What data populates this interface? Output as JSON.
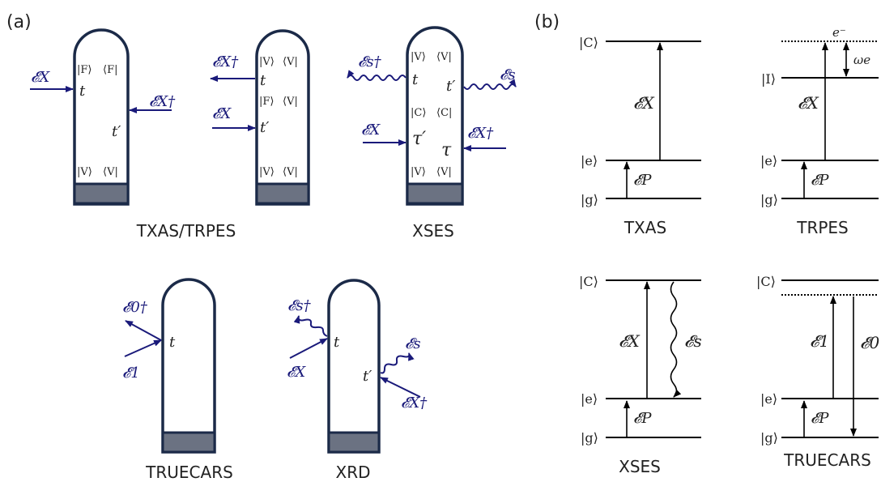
{
  "panel_a": {
    "label": "(a)",
    "diagrams": [
      {
        "name": "TXAS/TRPES",
        "left_ket": "|F⟩",
        "right_bra": "⟨F|",
        "bottom_ket": "|V⟩",
        "bottom_bra": "⟨V|",
        "t": "t",
        "tp": "t′",
        "field_in": "𝓔X",
        "field_out": "𝓔X†"
      },
      {
        "name": "TXAS/TRPES (2)",
        "top_ket": "|V⟩",
        "top_bra": "⟨V|",
        "mid_ket": "|F⟩",
        "mid_bra": "⟨V|",
        "bottom_ket": "|V⟩",
        "bottom_bra": "⟨V|",
        "t": "t",
        "tp": "t′",
        "field_out": "𝓔X†",
        "field_in": "𝓔X"
      },
      {
        "name": "XSES",
        "top_ket": "|V⟩",
        "top_bra": "⟨V|",
        "mid_ket": "|C⟩",
        "mid_bra": "⟨C|",
        "bottom_ket": "|V⟩",
        "bottom_bra": "⟨V|",
        "t": "t",
        "tp": "t′",
        "tau": "τ",
        "taup": "τ′",
        "field_s_dag": "𝓔s†",
        "field_s": "𝓔s",
        "field_x": "𝓔X",
        "field_x_dag": "𝓔X†"
      },
      {
        "name": "TRUECARS",
        "t": "t",
        "field_0_dag": "𝓔0†",
        "field_1": "𝓔1"
      },
      {
        "name": "XRD",
        "t": "t",
        "tp": "t′",
        "field_s_dag": "𝓔s†",
        "field_x": "𝓔X",
        "field_s": "𝓔s",
        "field_x_dag": "𝓔X†"
      }
    ],
    "captions": [
      "TXAS/TRPES",
      "XSES",
      "TRUECARS",
      "XRD"
    ]
  },
  "panel_b": {
    "label": "(b)",
    "diagrams": [
      {
        "caption": "TXAS",
        "levels": [
          "|C⟩",
          "|e⟩",
          "|g⟩"
        ],
        "fields": [
          "𝓔X",
          "𝓔P"
        ]
      },
      {
        "caption": "TRPES",
        "levels": [
          "|I⟩",
          "|e⟩",
          "|g⟩"
        ],
        "fields": [
          "𝓔X",
          "𝓔P"
        ],
        "electron": "e⁻",
        "omega": "ωe"
      },
      {
        "caption": "XSES",
        "levels": [
          "|C⟩",
          "|e⟩",
          "|g⟩"
        ],
        "fields": [
          "𝓔X",
          "𝓔s",
          "𝓔P"
        ]
      },
      {
        "caption": "TRUECARS",
        "levels": [
          "|C⟩",
          "|e⟩",
          "|g⟩"
        ],
        "fields": [
          "𝓔1",
          "𝓔0",
          "𝓔P"
        ]
      }
    ]
  }
}
